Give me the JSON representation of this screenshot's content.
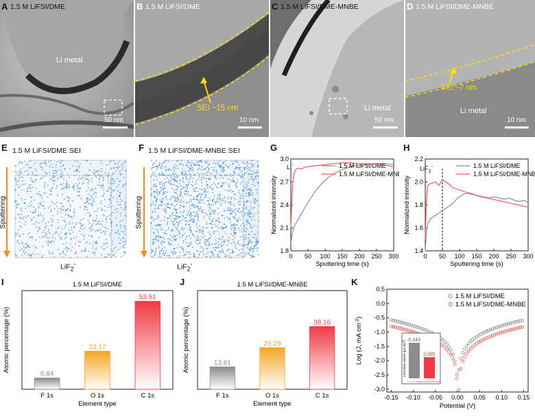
{
  "panels": {
    "A": {
      "label": "A",
      "title": "1.5 M LiFSI/DME",
      "region": "Li metal",
      "scale": "50 nm"
    },
    "B": {
      "label": "B",
      "title": "1.5 M LiFSI/DME",
      "annotation": "SEI ~15 nm",
      "scale": "10 nm"
    },
    "C": {
      "label": "C",
      "title": "1.5 M LiFSI/DME-MNBE",
      "region": "Li metal",
      "scale": "50 nm"
    },
    "D": {
      "label": "D",
      "title": "1.5 M LiFSI/DME-MNBE",
      "annotation": "SEI ~7 nm",
      "region": "Li metal",
      "scale": "10 nm"
    },
    "E": {
      "label": "E",
      "title": "1.5 M LiFSI/DME SEI",
      "axis": "Sputtering",
      "species": "LiF",
      "species_sub": "2",
      "species_sup": "-"
    },
    "F": {
      "label": "F",
      "title": "1.5 M LiFSI/DME-MNBE SEI",
      "axis": "Sputtering",
      "species": "LiF",
      "species_sub": "2",
      "species_sup": "-"
    },
    "G": {
      "label": "G",
      "ion": "Li",
      "ion_sup": "-"
    },
    "H": {
      "label": "H",
      "ion": "LiF",
      "ion_sub": "2",
      "ion_sup": "-"
    },
    "I": {
      "label": "I"
    },
    "J": {
      "label": "J"
    },
    "K": {
      "label": "K"
    }
  },
  "colors": {
    "gray_series": "#8c8c8c",
    "red_series": "#f05a5a",
    "orange_bar": "#f5a623",
    "red_bar": "#ef3b45",
    "sei_line": "#ffe000",
    "cube_dots": "#2f7fe0",
    "arrow": "#f08a24"
  },
  "chart_data": [
    {
      "id": "G",
      "type": "line",
      "xlabel": "Sputtering time (s)",
      "ylabel": "Normalized intensity",
      "xlim": [
        0,
        300
      ],
      "ylim": [
        1.8,
        3.0
      ],
      "xticks": [
        "0",
        "50",
        "100",
        "150",
        "200",
        "250",
        "300"
      ],
      "yticks": [
        "1.8",
        "2.1",
        "2.4",
        "2.7",
        "3.0"
      ],
      "legend_position": "top-right",
      "series": [
        {
          "name": "1.5 M LiFSI/DME",
          "color": "#8c8c8c",
          "x": [
            0,
            5,
            10,
            20,
            30,
            40,
            50,
            60,
            75,
            90,
            110,
            130,
            150,
            175,
            200,
            225,
            250,
            275,
            300
          ],
          "y": [
            1.9,
            2.05,
            2.12,
            2.2,
            2.28,
            2.36,
            2.43,
            2.5,
            2.6,
            2.68,
            2.76,
            2.82,
            2.86,
            2.9,
            2.92,
            2.93,
            2.94,
            2.94,
            2.93
          ]
        },
        {
          "name": "1.5 M LiFSI/DME-MNBE",
          "color": "#f05a5a",
          "x": [
            0,
            3,
            6,
            10,
            15,
            20,
            30,
            40,
            50,
            70,
            90,
            110,
            130,
            150,
            175,
            200,
            225,
            250,
            275,
            300
          ],
          "y": [
            2.1,
            2.45,
            2.7,
            2.82,
            2.86,
            2.88,
            2.87,
            2.89,
            2.9,
            2.91,
            2.92,
            2.93,
            2.94,
            2.95,
            2.95,
            2.94,
            2.94,
            2.93,
            2.92,
            2.9
          ]
        }
      ]
    },
    {
      "id": "H",
      "type": "line",
      "xlabel": "Sputtering time (s)",
      "ylabel": "Normalized intensity",
      "xlim": [
        0,
        300
      ],
      "ylim": [
        1.4,
        2.2
      ],
      "xticks": [
        "0",
        "50",
        "100",
        "150",
        "200",
        "250",
        "300"
      ],
      "yticks": [
        "1.4",
        "1.6",
        "1.8",
        "2.0",
        "2.2"
      ],
      "marker_x": 50,
      "legend_position": "top-right",
      "series": [
        {
          "name": "1.5 M LiFSI/DME",
          "color": "#8c8c8c",
          "x": [
            0,
            3,
            8,
            15,
            25,
            35,
            45,
            55,
            65,
            75,
            85,
            95,
            105,
            115,
            125,
            140,
            155,
            170,
            185,
            200,
            215,
            230,
            245,
            260,
            275,
            290,
            300
          ],
          "y": [
            1.4,
            1.55,
            1.64,
            1.68,
            1.7,
            1.72,
            1.74,
            1.76,
            1.78,
            1.8,
            1.83,
            1.86,
            1.88,
            1.9,
            1.9,
            1.89,
            1.88,
            1.87,
            1.86,
            1.87,
            1.86,
            1.85,
            1.86,
            1.84,
            1.83,
            1.84,
            1.82
          ]
        },
        {
          "name": "1.5 M LiFSI/DME-MNBE",
          "color": "#f05a5a",
          "x": [
            0,
            3,
            6,
            10,
            20,
            30,
            40,
            50,
            60,
            70,
            80,
            90,
            100,
            110,
            120,
            135,
            150,
            165,
            180,
            195,
            210,
            225,
            240,
            255,
            270,
            285,
            300
          ],
          "y": [
            1.5,
            1.8,
            1.95,
            1.98,
            1.99,
            2.0,
            1.97,
            2.02,
            2.0,
            1.98,
            1.95,
            1.94,
            1.93,
            1.92,
            1.91,
            1.9,
            1.88,
            1.87,
            1.86,
            1.85,
            1.84,
            1.83,
            1.82,
            1.81,
            1.8,
            1.79,
            1.78
          ]
        }
      ]
    },
    {
      "id": "I",
      "type": "bar",
      "title": "1.5 M LiFSI/DME",
      "xlabel": "Element type",
      "ylabel": "Atomic percentage (%)",
      "ylim": [
        0,
        60
      ],
      "categories": [
        "F 1s",
        "O 1s",
        "C 1s"
      ],
      "values": [
        6.84,
        23.17,
        53.51
      ],
      "value_labels": [
        "6.84",
        "23.17",
        "53.51"
      ],
      "bar_colors": [
        "#8c8c8c",
        "#f5a623",
        "#ef3b45"
      ]
    },
    {
      "id": "J",
      "type": "bar",
      "title": "1.5 M LiFSI/DME-MNBE",
      "xlabel": "Element type",
      "ylabel": "Atomic percentage (%)",
      "ylim": [
        0,
        60
      ],
      "categories": [
        "F 1s",
        "O 1s",
        "C 1s"
      ],
      "values": [
        13.61,
        25.29,
        38.16
      ],
      "value_labels": [
        "13.61",
        "25.29",
        "38.16"
      ],
      "bar_colors": [
        "#8c8c8c",
        "#f5a623",
        "#ef3b45"
      ]
    },
    {
      "id": "K",
      "type": "scatter",
      "xlabel": "Potential (V)",
      "ylabel": "Log (J, mA cm",
      "ylabel_sup": "-2",
      "ylabel_end": ")",
      "xlim": [
        -0.16,
        0.16
      ],
      "ylim": [
        -3.1,
        0.5
      ],
      "xticks": [
        "-0.15",
        "-0.10",
        "-0.05",
        "0.00",
        "0.05",
        "0.10",
        "0.15"
      ],
      "yticks": [
        "-3.0",
        "-2.5",
        "-2.0",
        "-1.5",
        "-1.0",
        "-0.5",
        "0.0",
        "0.5"
      ],
      "legend_position": "top-right",
      "series": [
        {
          "name": "1.5 M LiFSI/DME",
          "color": "#8c8c8c",
          "i_corr_log": -0.845,
          "e_corr": 0.0,
          "slope": 11
        },
        {
          "name": "1.5 M LiFSI/DME-MNBE",
          "color": "#f05a5a",
          "i_corr_log": -1.07,
          "e_corr": 0.002,
          "slope": 11
        }
      ],
      "inset": {
        "ylabel": "Corrosion current (μA cm",
        "ylabel_sup": "-2",
        "ylabel_end": ")",
        "values": [
          0.143,
          0.085
        ],
        "value_labels": [
          "0.143",
          "0.085"
        ],
        "bar_colors": [
          "#8c8c8c",
          "#ef3b45"
        ],
        "categories": [
          "1.5 M LiFSI/DME",
          "1.5 M LiFSI/DME-MNBE"
        ]
      }
    }
  ]
}
